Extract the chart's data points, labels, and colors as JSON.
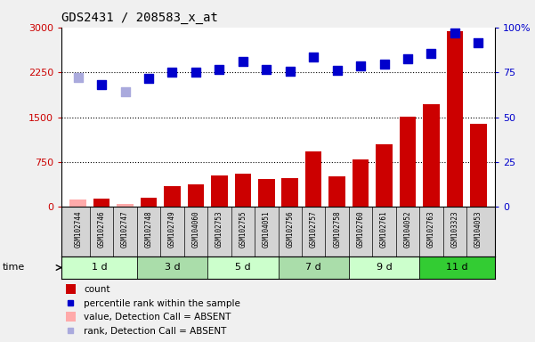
{
  "title": "GDS2431 / 208583_x_at",
  "samples": [
    "GSM102744",
    "GSM102746",
    "GSM102747",
    "GSM102748",
    "GSM102749",
    "GSM104060",
    "GSM102753",
    "GSM102755",
    "GSM104051",
    "GSM102756",
    "GSM102757",
    "GSM102758",
    "GSM102760",
    "GSM102761",
    "GSM104052",
    "GSM102763",
    "GSM103323",
    "GSM104053"
  ],
  "time_groups": [
    {
      "label": "1 d",
      "start": 0,
      "end": 3,
      "color": "#ccffcc"
    },
    {
      "label": "3 d",
      "start": 3,
      "end": 6,
      "color": "#aaddaa"
    },
    {
      "label": "5 d",
      "start": 6,
      "end": 9,
      "color": "#ccffcc"
    },
    {
      "label": "7 d",
      "start": 9,
      "end": 12,
      "color": "#aaddaa"
    },
    {
      "label": "9 d",
      "start": 12,
      "end": 15,
      "color": "#ccffcc"
    },
    {
      "label": "11 d",
      "start": 15,
      "end": 18,
      "color": "#33cc33"
    }
  ],
  "count_values": [
    130,
    140,
    50,
    160,
    340,
    380,
    530,
    560,
    460,
    480,
    930,
    510,
    790,
    1050,
    1510,
    1720,
    2930,
    1390
  ],
  "count_absent": [
    true,
    false,
    true,
    false,
    false,
    false,
    false,
    false,
    false,
    false,
    false,
    false,
    false,
    false,
    false,
    false,
    false,
    false
  ],
  "rank_values": [
    2160,
    2050,
    1920,
    2150,
    2250,
    2250,
    2300,
    2430,
    2300,
    2270,
    2500,
    2280,
    2350,
    2380,
    2470,
    2570,
    2900,
    2750
  ],
  "rank_absent": [
    true,
    false,
    true,
    false,
    false,
    false,
    false,
    false,
    false,
    false,
    false,
    false,
    false,
    false,
    false,
    false,
    false,
    false
  ],
  "left_ylim": [
    0,
    3000
  ],
  "right_ylim": [
    0,
    100
  ],
  "left_yticks": [
    0,
    750,
    1500,
    2250,
    3000
  ],
  "right_yticks": [
    0,
    25,
    50,
    75,
    100
  ],
  "right_yticklabels": [
    "0",
    "25",
    "50",
    "75",
    "100%"
  ],
  "bar_color_present": "#cc0000",
  "bar_color_absent": "#ffaaaa",
  "dot_color_present": "#0000cc",
  "dot_color_absent": "#aaaadd",
  "legend_items": [
    {
      "label": "count",
      "color": "#cc0000",
      "type": "bar"
    },
    {
      "label": "percentile rank within the sample",
      "color": "#0000cc",
      "type": "dot"
    },
    {
      "label": "value, Detection Call = ABSENT",
      "color": "#ffaaaa",
      "type": "bar"
    },
    {
      "label": "rank, Detection Call = ABSENT",
      "color": "#aaaadd",
      "type": "dot"
    }
  ]
}
